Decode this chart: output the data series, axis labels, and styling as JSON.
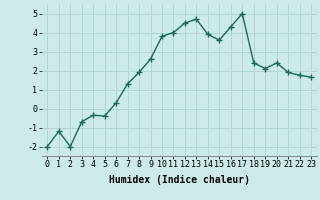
{
  "x": [
    0,
    1,
    2,
    3,
    4,
    5,
    6,
    7,
    8,
    9,
    10,
    11,
    12,
    13,
    14,
    15,
    16,
    17,
    18,
    19,
    20,
    21,
    22,
    23
  ],
  "y": [
    -2.0,
    -1.2,
    -2.0,
    -0.7,
    -0.35,
    -0.4,
    0.3,
    1.3,
    1.9,
    2.6,
    3.8,
    4.0,
    4.5,
    4.7,
    3.9,
    3.6,
    4.3,
    5.0,
    2.4,
    2.1,
    2.4,
    1.9,
    1.75,
    1.65
  ],
  "xlabel": "Humidex (Indice chaleur)",
  "xlim": [
    -0.5,
    23.5
  ],
  "ylim": [
    -2.5,
    5.5
  ],
  "yticks": [
    -2,
    -1,
    0,
    1,
    2,
    3,
    4,
    5
  ],
  "xticks": [
    0,
    1,
    2,
    3,
    4,
    5,
    6,
    7,
    8,
    9,
    10,
    11,
    12,
    13,
    14,
    15,
    16,
    17,
    18,
    19,
    20,
    21,
    22,
    23
  ],
  "line_color": "#1a6b5a",
  "marker": "+",
  "marker_size": 4.0,
  "bg_color": "#cceae8",
  "grid_color": "#b0d8d5",
  "line_width": 1.0,
  "tick_fontsize": 6.0,
  "xlabel_fontsize": 7.0
}
